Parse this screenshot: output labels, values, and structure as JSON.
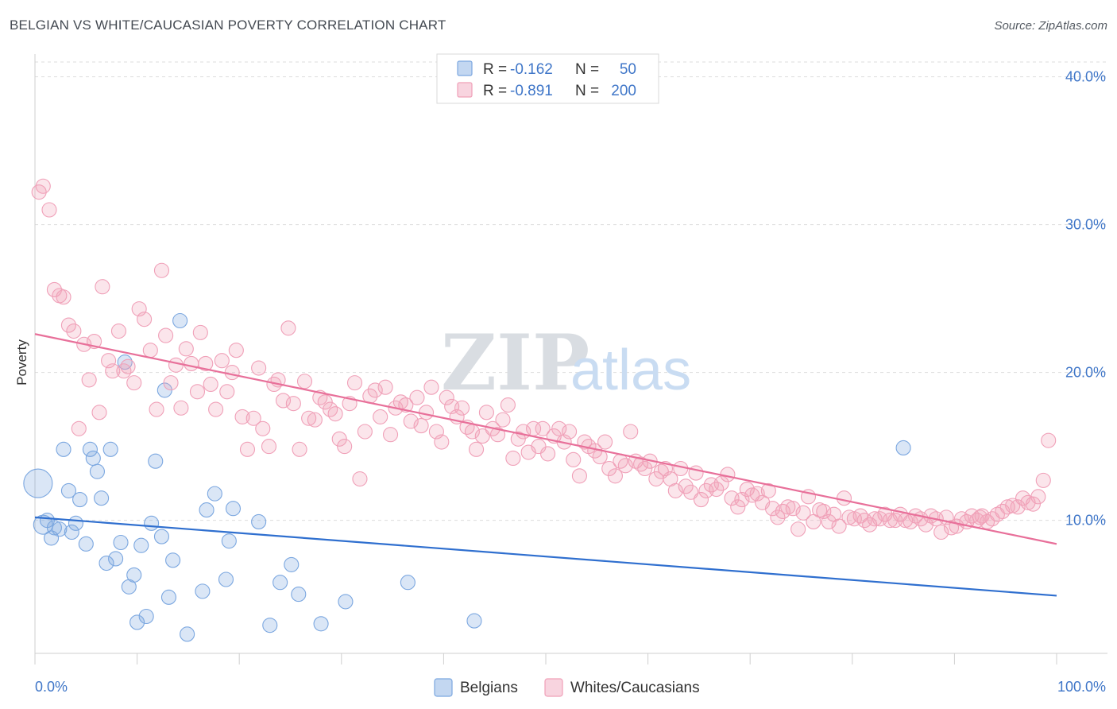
{
  "header": {
    "title": "BELGIAN VS WHITE/CAUCASIAN POVERTY CORRELATION CHART",
    "source": "Source: ZipAtlas.com"
  },
  "watermark": {
    "part1": "ZIP",
    "part2": "atlas"
  },
  "legend": {
    "rows": [
      {
        "r_label": "R =",
        "r_value": "-0.162",
        "n_label": "N =",
        "n_value": "50",
        "color": "#7ba7e0"
      },
      {
        "r_label": "R =",
        "r_value": "-0.891",
        "n_label": "N =",
        "n_value": "200",
        "color": "#f0a0b8"
      }
    ]
  },
  "bottom_legend": [
    {
      "label": "Belgians",
      "color": "#7ba7e0"
    },
    {
      "label": "Whites/Caucasians",
      "color": "#f0a0b8"
    }
  ],
  "chart_data": {
    "type": "scatter",
    "xlabel": "",
    "ylabel": "Poverty",
    "xlim": [
      0,
      100
    ],
    "ylim": [
      1,
      41
    ],
    "x_tick_labels": [
      "0.0%",
      "100.0%"
    ],
    "y_ticks": [
      10,
      20,
      30,
      40
    ],
    "y_tick_labels": [
      "10.0%",
      "20.0%",
      "30.0%",
      "40.0%"
    ],
    "grid": "horizontal dashed",
    "legend_position": "top-center",
    "series": [
      {
        "name": "Belgians",
        "color": "#7ba7e0",
        "line_color": "#2f6fcf",
        "trend": {
          "x": [
            0,
            100
          ],
          "y": [
            10.2,
            4.9
          ]
        },
        "points": [
          [
            0.3,
            12.5,
            18
          ],
          [
            0.8,
            9.7,
            12
          ],
          [
            1.2,
            10.0,
            9
          ],
          [
            1.6,
            8.8,
            9
          ],
          [
            1.9,
            9.5,
            9
          ],
          [
            2.4,
            9.4,
            9
          ],
          [
            2.8,
            14.8,
            9
          ],
          [
            3.3,
            12.0,
            9
          ],
          [
            3.6,
            9.2,
            9
          ],
          [
            4.0,
            9.8,
            9
          ],
          [
            4.4,
            11.4,
            9
          ],
          [
            5.0,
            8.4,
            9
          ],
          [
            5.4,
            14.8,
            9
          ],
          [
            5.7,
            14.2,
            9
          ],
          [
            6.1,
            13.3,
            9
          ],
          [
            6.5,
            11.5,
            9
          ],
          [
            7.0,
            7.1,
            9
          ],
          [
            7.4,
            14.8,
            9
          ],
          [
            7.9,
            7.4,
            9
          ],
          [
            8.4,
            8.5,
            9
          ],
          [
            8.8,
            20.7,
            9
          ],
          [
            9.2,
            5.5,
            9
          ],
          [
            9.7,
            6.3,
            9
          ],
          [
            10.0,
            3.1,
            9
          ],
          [
            10.4,
            8.3,
            9
          ],
          [
            10.9,
            3.5,
            9
          ],
          [
            11.4,
            9.8,
            9
          ],
          [
            11.8,
            14.0,
            9
          ],
          [
            12.4,
            8.9,
            9
          ],
          [
            12.7,
            18.8,
            9
          ],
          [
            13.1,
            4.8,
            9
          ],
          [
            13.5,
            7.3,
            9
          ],
          [
            14.2,
            23.5,
            9
          ],
          [
            14.9,
            2.3,
            9
          ],
          [
            16.4,
            5.2,
            9
          ],
          [
            16.8,
            10.7,
            9
          ],
          [
            17.6,
            11.8,
            9
          ],
          [
            18.7,
            6.0,
            9
          ],
          [
            19.0,
            8.6,
            9
          ],
          [
            19.4,
            10.8,
            9
          ],
          [
            21.9,
            9.9,
            9
          ],
          [
            23.0,
            2.9,
            9
          ],
          [
            24.0,
            5.8,
            9
          ],
          [
            25.1,
            7.0,
            9
          ],
          [
            25.8,
            5.0,
            9
          ],
          [
            28.0,
            3.0,
            9
          ],
          [
            30.4,
            4.5,
            9
          ],
          [
            36.5,
            5.8,
            9
          ],
          [
            43.0,
            3.2,
            9
          ],
          [
            85.0,
            14.9,
            9
          ]
        ]
      },
      {
        "name": "Whites/Caucasians",
        "color": "#f0a0b8",
        "line_color": "#e8709a",
        "trend": {
          "x": [
            0,
            100
          ],
          "y": [
            22.6,
            8.4
          ]
        },
        "points": [
          [
            0.4,
            32.2
          ],
          [
            0.8,
            32.6
          ],
          [
            1.4,
            31.0
          ],
          [
            1.9,
            25.6
          ],
          [
            2.4,
            25.2
          ],
          [
            2.8,
            25.1
          ],
          [
            3.3,
            23.2
          ],
          [
            3.8,
            22.8
          ],
          [
            4.3,
            16.2
          ],
          [
            4.8,
            21.9
          ],
          [
            5.3,
            19.5
          ],
          [
            5.8,
            22.1
          ],
          [
            6.3,
            17.3
          ],
          [
            6.6,
            25.8
          ],
          [
            7.2,
            20.8
          ],
          [
            7.6,
            20.1
          ],
          [
            8.2,
            22.8
          ],
          [
            8.7,
            20.1
          ],
          [
            9.1,
            20.4
          ],
          [
            9.7,
            19.3
          ],
          [
            10.2,
            24.3
          ],
          [
            10.7,
            23.6
          ],
          [
            11.3,
            21.5
          ],
          [
            11.9,
            17.5
          ],
          [
            12.4,
            26.9
          ],
          [
            12.8,
            22.5
          ],
          [
            13.3,
            19.3
          ],
          [
            13.8,
            20.5
          ],
          [
            14.3,
            17.6
          ],
          [
            14.8,
            21.6
          ],
          [
            15.3,
            20.6
          ],
          [
            15.9,
            18.7
          ],
          [
            16.2,
            22.7
          ],
          [
            16.7,
            20.6
          ],
          [
            17.2,
            19.2
          ],
          [
            17.7,
            17.5
          ],
          [
            18.3,
            20.8
          ],
          [
            18.8,
            18.7
          ],
          [
            19.3,
            20.0
          ],
          [
            19.7,
            21.5
          ],
          [
            20.3,
            17.0
          ],
          [
            20.8,
            14.8
          ],
          [
            21.4,
            16.9
          ],
          [
            21.9,
            20.3
          ],
          [
            22.3,
            16.2
          ],
          [
            22.9,
            15.0
          ],
          [
            23.4,
            19.2
          ],
          [
            23.8,
            19.5
          ],
          [
            24.3,
            18.1
          ],
          [
            24.8,
            23.0
          ],
          [
            25.3,
            17.9
          ],
          [
            25.9,
            14.8
          ],
          [
            26.4,
            19.4
          ],
          [
            26.8,
            16.9
          ],
          [
            27.4,
            16.8
          ],
          [
            27.9,
            18.3
          ],
          [
            28.4,
            18.0
          ],
          [
            28.9,
            17.5
          ],
          [
            29.4,
            17.2
          ],
          [
            29.8,
            15.5
          ],
          [
            30.3,
            15.0
          ],
          [
            30.8,
            17.9
          ],
          [
            31.3,
            19.3
          ],
          [
            31.8,
            12.8
          ],
          [
            32.3,
            16.0
          ],
          [
            32.8,
            18.4
          ],
          [
            33.3,
            18.8
          ],
          [
            33.8,
            17.0
          ],
          [
            34.3,
            19.0
          ],
          [
            34.8,
            15.8
          ],
          [
            35.3,
            17.6
          ],
          [
            35.8,
            18.0
          ],
          [
            36.3,
            17.8
          ],
          [
            36.8,
            16.7
          ],
          [
            37.4,
            18.3
          ],
          [
            37.8,
            16.4
          ],
          [
            38.3,
            17.3
          ],
          [
            38.8,
            19.0
          ],
          [
            39.3,
            16.0
          ],
          [
            39.8,
            15.3
          ],
          [
            40.3,
            18.3
          ],
          [
            40.8,
            17.7
          ],
          [
            41.3,
            17.0
          ],
          [
            41.8,
            17.6
          ],
          [
            42.3,
            16.3
          ],
          [
            42.8,
            16.0
          ],
          [
            43.2,
            14.8
          ],
          [
            43.8,
            15.7
          ],
          [
            44.2,
            17.3
          ],
          [
            44.8,
            16.2
          ],
          [
            45.3,
            15.8
          ],
          [
            45.8,
            16.8
          ],
          [
            46.3,
            17.8
          ],
          [
            46.8,
            14.2
          ],
          [
            47.3,
            15.5
          ],
          [
            47.8,
            16.0
          ],
          [
            48.3,
            14.6
          ],
          [
            48.8,
            16.2
          ],
          [
            49.3,
            15.0
          ],
          [
            49.7,
            16.2
          ],
          [
            50.2,
            14.5
          ],
          [
            50.8,
            15.7
          ],
          [
            51.3,
            16.2
          ],
          [
            51.8,
            15.3
          ],
          [
            52.3,
            16.0
          ],
          [
            52.7,
            14.1
          ],
          [
            53.3,
            13.0
          ],
          [
            53.8,
            15.3
          ],
          [
            54.2,
            15.0
          ],
          [
            54.8,
            14.7
          ],
          [
            55.3,
            14.3
          ],
          [
            55.8,
            15.3
          ],
          [
            56.2,
            13.5
          ],
          [
            56.8,
            13.0
          ],
          [
            57.3,
            14.0
          ],
          [
            57.8,
            13.7
          ],
          [
            58.3,
            16.0
          ],
          [
            58.8,
            14.0
          ],
          [
            59.3,
            13.8
          ],
          [
            59.7,
            13.5
          ],
          [
            60.2,
            14.0
          ],
          [
            60.8,
            12.8
          ],
          [
            61.3,
            13.3
          ],
          [
            61.7,
            13.5
          ],
          [
            62.2,
            12.8
          ],
          [
            62.7,
            12.0
          ],
          [
            63.2,
            13.5
          ],
          [
            63.7,
            12.3
          ],
          [
            64.2,
            11.9
          ],
          [
            64.7,
            13.2
          ],
          [
            65.2,
            11.4
          ],
          [
            65.7,
            12.0
          ],
          [
            66.2,
            12.4
          ],
          [
            66.7,
            12.1
          ],
          [
            67.2,
            12.5
          ],
          [
            67.8,
            13.1
          ],
          [
            68.2,
            11.5
          ],
          [
            68.8,
            10.9
          ],
          [
            69.2,
            11.4
          ],
          [
            69.7,
            12.1
          ],
          [
            70.2,
            11.7
          ],
          [
            70.7,
            11.8
          ],
          [
            71.2,
            11.2
          ],
          [
            71.8,
            12.0
          ],
          [
            72.2,
            10.8
          ],
          [
            72.7,
            10.2
          ],
          [
            73.2,
            10.6
          ],
          [
            73.7,
            10.9
          ],
          [
            74.2,
            10.8
          ],
          [
            74.7,
            9.4
          ],
          [
            75.2,
            10.5
          ],
          [
            75.7,
            11.6
          ],
          [
            76.2,
            9.9
          ],
          [
            76.8,
            10.7
          ],
          [
            77.2,
            10.6
          ],
          [
            77.7,
            9.9
          ],
          [
            78.2,
            10.4
          ],
          [
            78.7,
            9.6
          ],
          [
            79.2,
            11.5
          ],
          [
            79.7,
            10.2
          ],
          [
            80.2,
            10.1
          ],
          [
            80.8,
            10.3
          ],
          [
            81.2,
            10.0
          ],
          [
            81.7,
            9.7
          ],
          [
            82.2,
            10.1
          ],
          [
            82.7,
            10.1
          ],
          [
            83.2,
            10.4
          ],
          [
            83.7,
            10.0
          ],
          [
            84.2,
            10.0
          ],
          [
            84.7,
            10.4
          ],
          [
            85.2,
            10.0
          ],
          [
            85.7,
            9.9
          ],
          [
            86.2,
            10.3
          ],
          [
            86.7,
            10.1
          ],
          [
            87.2,
            9.7
          ],
          [
            87.7,
            10.3
          ],
          [
            88.2,
            10.1
          ],
          [
            88.7,
            9.2
          ],
          [
            89.2,
            10.2
          ],
          [
            89.7,
            9.5
          ],
          [
            90.2,
            9.6
          ],
          [
            90.7,
            10.1
          ],
          [
            91.2,
            9.9
          ],
          [
            91.7,
            10.3
          ],
          [
            92.2,
            10.0
          ],
          [
            92.7,
            10.3
          ],
          [
            93.2,
            9.9
          ],
          [
            93.7,
            10.1
          ],
          [
            94.2,
            10.4
          ],
          [
            94.7,
            10.6
          ],
          [
            95.2,
            10.9
          ],
          [
            95.7,
            11.0
          ],
          [
            96.2,
            10.9
          ],
          [
            96.7,
            11.5
          ],
          [
            97.2,
            11.2
          ],
          [
            97.7,
            11.1
          ],
          [
            98.2,
            11.6
          ],
          [
            98.7,
            12.7
          ],
          [
            99.2,
            15.4
          ],
          [
            92.5,
            10.2
          ]
        ]
      }
    ]
  }
}
